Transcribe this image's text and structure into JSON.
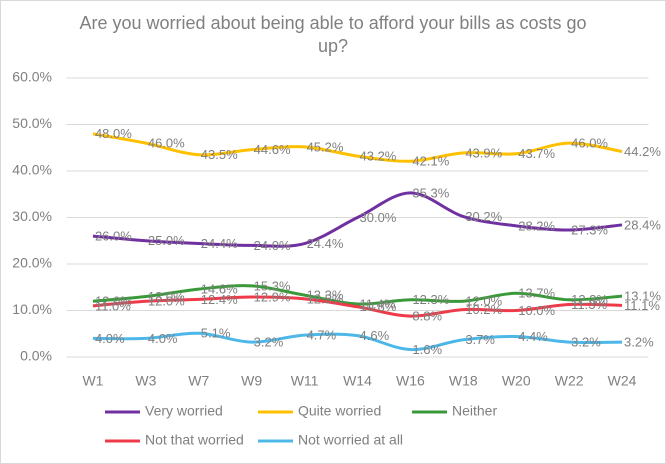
{
  "chart_data": {
    "type": "line",
    "title": "Are you worried about being able to afford your bills as costs go up?",
    "categories": [
      "W1",
      "W3",
      "W7",
      "W9",
      "W11",
      "W14",
      "W16",
      "W18",
      "W20",
      "W22",
      "W24"
    ],
    "series": [
      {
        "name": "Very worried",
        "color": "#7030a0",
        "values": [
          26.0,
          25.0,
          24.4,
          24.0,
          24.4,
          30.0,
          35.3,
          30.2,
          28.2,
          27.3,
          28.4
        ],
        "value_labels": [
          "26.0%",
          "25.0%",
          "24.4%",
          "24.0%",
          "24.4%",
          "30.0%",
          "35.3%",
          "30.2%",
          "28.2%",
          "27.3%",
          "28.4%"
        ]
      },
      {
        "name": "Quite worried",
        "color": "#ffc000",
        "values": [
          48.0,
          46.0,
          43.5,
          44.6,
          45.2,
          43.2,
          42.1,
          43.9,
          43.7,
          46.0,
          44.2
        ],
        "value_labels": [
          "48.0%",
          "46.0%",
          "43.5%",
          "44.6%",
          "45.2%",
          "43.2%",
          "42.1%",
          "43.9%",
          "43.7%",
          "46.0%",
          "44.2%"
        ]
      },
      {
        "name": "Neither",
        "color": "#3a9a3a",
        "values": [
          12.0,
          13.0,
          14.6,
          15.3,
          13.3,
          11.4,
          12.3,
          12.0,
          13.7,
          12.3,
          13.1
        ],
        "value_labels": [
          "12.0%",
          "13.0%",
          "14.6%",
          "15.3%",
          "13.3%",
          "11.4%",
          "12.3%",
          "12.0%",
          "13.7%",
          "12.3%",
          "13.1%"
        ]
      },
      {
        "name": "Not that worried",
        "color": "#ee3b4a",
        "values": [
          11.0,
          12.0,
          12.4,
          12.9,
          12.5,
          10.8,
          8.8,
          10.2,
          10.0,
          11.3,
          11.1
        ],
        "value_labels": [
          "11.0%",
          "12.0%",
          "12.4%",
          "12.9%",
          "12.5%",
          "10.8%",
          "8.8%",
          "10.2%",
          "10.0%",
          "11.3%",
          "11.1%"
        ]
      },
      {
        "name": "Not worried at all",
        "color": "#4db8e8",
        "values": [
          4.0,
          4.0,
          5.1,
          3.2,
          4.7,
          4.6,
          1.6,
          3.7,
          4.4,
          3.2,
          3.2
        ],
        "value_labels": [
          "4.0%",
          "4.0%",
          "5.1%",
          "3.2%",
          "4.7%",
          "4.6%",
          "1.6%",
          "3.7%",
          "4.4%",
          "3.2%",
          "3.2%"
        ]
      }
    ],
    "ylim": [
      0,
      60
    ],
    "yticks": [
      {
        "value": 0,
        "label": "0.0%"
      },
      {
        "value": 10,
        "label": "10.0%"
      },
      {
        "value": 20,
        "label": "20.0%"
      },
      {
        "value": 30,
        "label": "30.0%"
      },
      {
        "value": 40,
        "label": "40.0%"
      },
      {
        "value": 50,
        "label": "50.0%"
      },
      {
        "value": 60,
        "label": "60.0%"
      }
    ],
    "grid": true
  }
}
